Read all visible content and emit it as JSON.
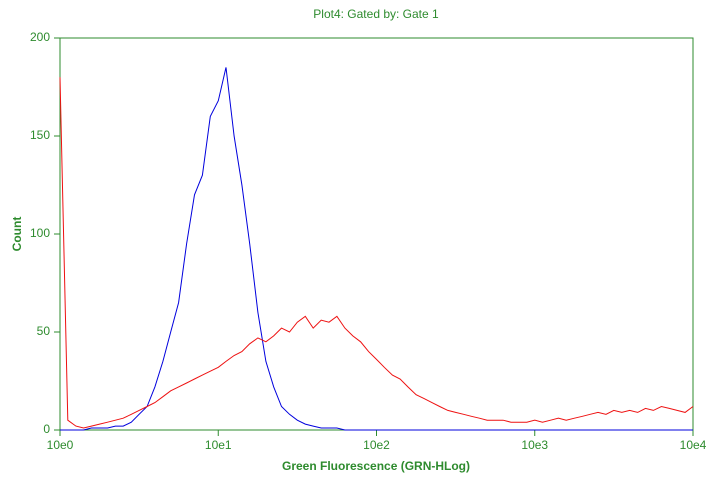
{
  "chart_data": {
    "type": "line",
    "title": "Plot4:  Gated by: Gate 1",
    "x_label": "Green Fluorescence (GRN-HLog)",
    "y_label": "Count",
    "xscale": "log",
    "frame_color": "#2e8b2e",
    "x": [
      1,
      1.12,
      1.26,
      1.41,
      1.58,
      1.78,
      2,
      2.24,
      2.51,
      2.82,
      3.16,
      3.55,
      3.98,
      4.47,
      5.01,
      5.62,
      6.31,
      7.08,
      7.94,
      8.91,
      10,
      11.2,
      12.6,
      14.1,
      15.8,
      17.8,
      20,
      22.4,
      25.1,
      28.2,
      31.6,
      35.5,
      39.8,
      44.7,
      50.1,
      56.2,
      63.1,
      70.8,
      79.4,
      89.1,
      100,
      112,
      126,
      141,
      158,
      178,
      200,
      224,
      251,
      282,
      316,
      355,
      398,
      447,
      501,
      562,
      631,
      708,
      794,
      891,
      1000,
      1120,
      1260,
      1410,
      1580,
      1780,
      2000,
      2240,
      2510,
      2820,
      3160,
      3550,
      3980,
      4470,
      5010,
      5620,
      6310,
      7080,
      7940,
      8910,
      10000
    ],
    "series": [
      {
        "color": "#0000dd",
        "values": [
          0,
          0,
          0,
          0,
          1,
          1,
          1,
          2,
          2,
          4,
          8,
          12,
          22,
          35,
          50,
          65,
          95,
          120,
          130,
          160,
          168,
          185,
          150,
          125,
          95,
          60,
          35,
          22,
          12,
          8,
          5,
          3,
          2,
          1,
          1,
          1,
          0,
          0,
          0,
          0,
          0,
          0,
          0,
          0,
          0,
          0,
          0,
          0,
          0,
          0,
          0,
          0,
          0,
          0,
          0,
          0,
          0,
          0,
          0,
          0,
          0,
          0,
          0,
          0,
          0,
          0,
          0,
          0,
          0,
          0,
          0,
          0,
          0,
          0,
          0,
          0,
          0,
          0,
          0,
          0,
          0
        ]
      },
      {
        "color": "#ee1111",
        "values": [
          180,
          5,
          2,
          1,
          2,
          3,
          4,
          5,
          6,
          8,
          10,
          12,
          14,
          17,
          20,
          22,
          24,
          26,
          28,
          30,
          32,
          35,
          38,
          40,
          44,
          47,
          45,
          48,
          52,
          50,
          55,
          58,
          52,
          56,
          55,
          58,
          52,
          48,
          45,
          40,
          36,
          32,
          28,
          26,
          22,
          18,
          16,
          14,
          12,
          10,
          9,
          8,
          7,
          6,
          5,
          5,
          5,
          4,
          4,
          4,
          5,
          4,
          5,
          6,
          5,
          6,
          7,
          8,
          9,
          8,
          10,
          9,
          10,
          9,
          11,
          10,
          12,
          11,
          10,
          9,
          12
        ]
      }
    ],
    "xlim": [
      1,
      10000
    ],
    "xticks": [
      {
        "value": 1,
        "label": "10e0"
      },
      {
        "value": 10,
        "label": "10e1"
      },
      {
        "value": 100,
        "label": "10e2"
      },
      {
        "value": 1000,
        "label": "10e3"
      },
      {
        "value": 10000,
        "label": "10e4"
      }
    ],
    "ylim": [
      0,
      200
    ],
    "yticks": [
      0,
      50,
      100,
      150,
      200
    ]
  }
}
